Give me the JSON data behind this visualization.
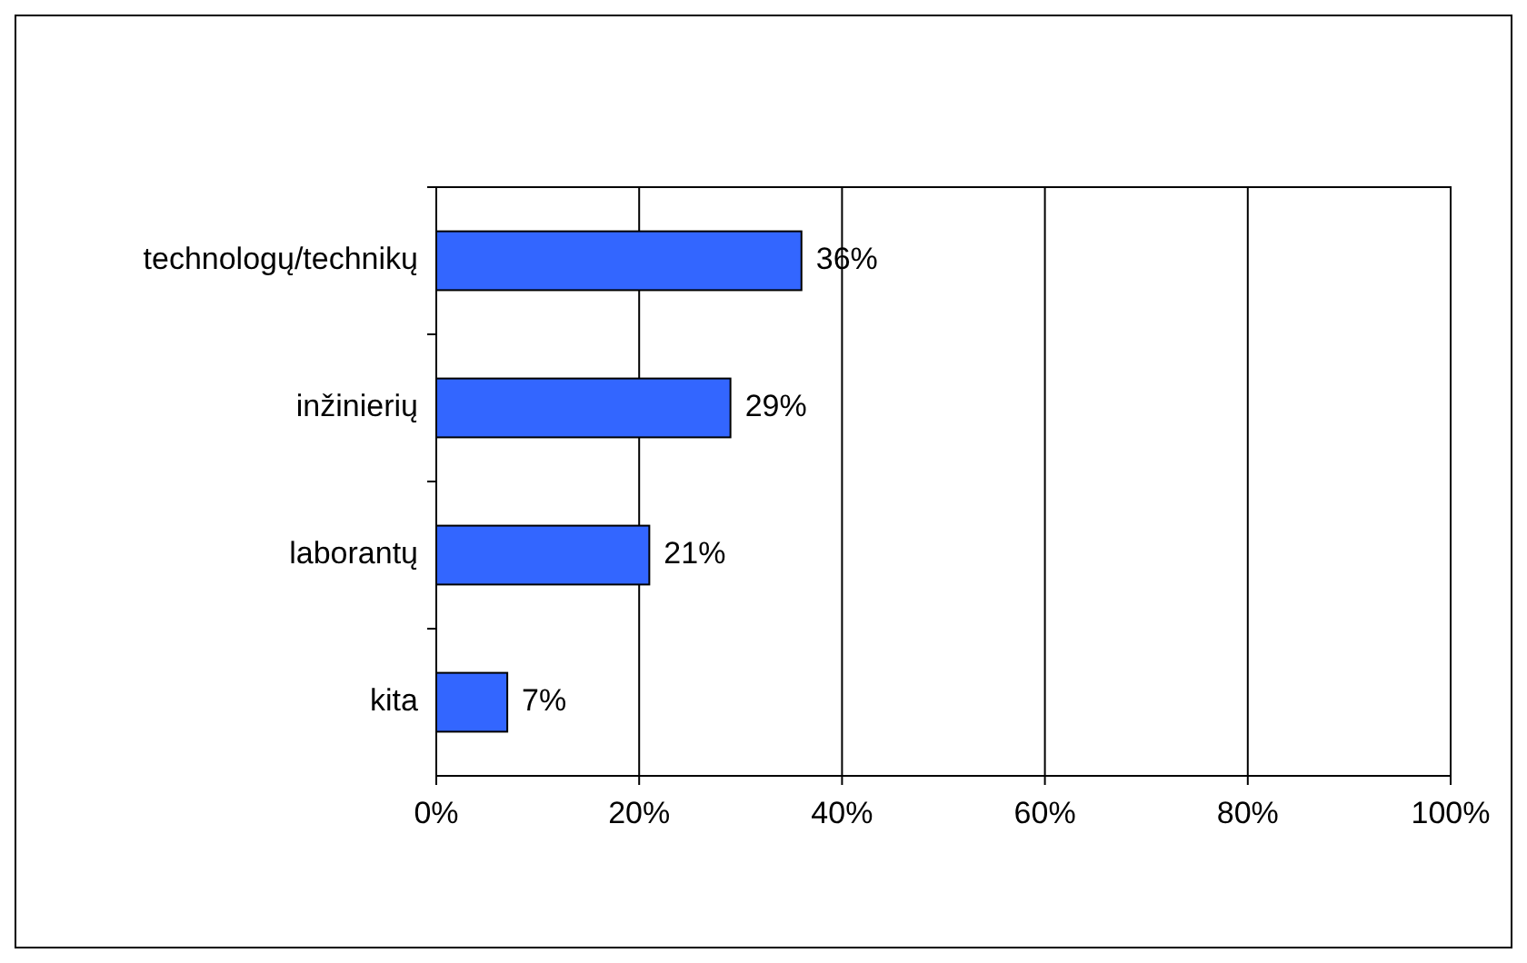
{
  "chart_data": {
    "type": "bar",
    "orientation": "horizontal",
    "categories": [
      "technologų/technikų",
      "inžinierių",
      "laborantų",
      "kita"
    ],
    "values": [
      36,
      29,
      21,
      7
    ],
    "color": "#3366ff",
    "value_labels": [
      "36%",
      "29%",
      "21%",
      "7%"
    ],
    "xlim": [
      0,
      100
    ],
    "xticks": [
      {
        "value": 0,
        "label": "0%"
      },
      {
        "value": 20,
        "label": "20%"
      },
      {
        "value": 40,
        "label": "40%"
      },
      {
        "value": 60,
        "label": "60%"
      },
      {
        "value": 80,
        "label": "80%"
      },
      {
        "value": 100,
        "label": "100%"
      }
    ],
    "grid": "x"
  }
}
